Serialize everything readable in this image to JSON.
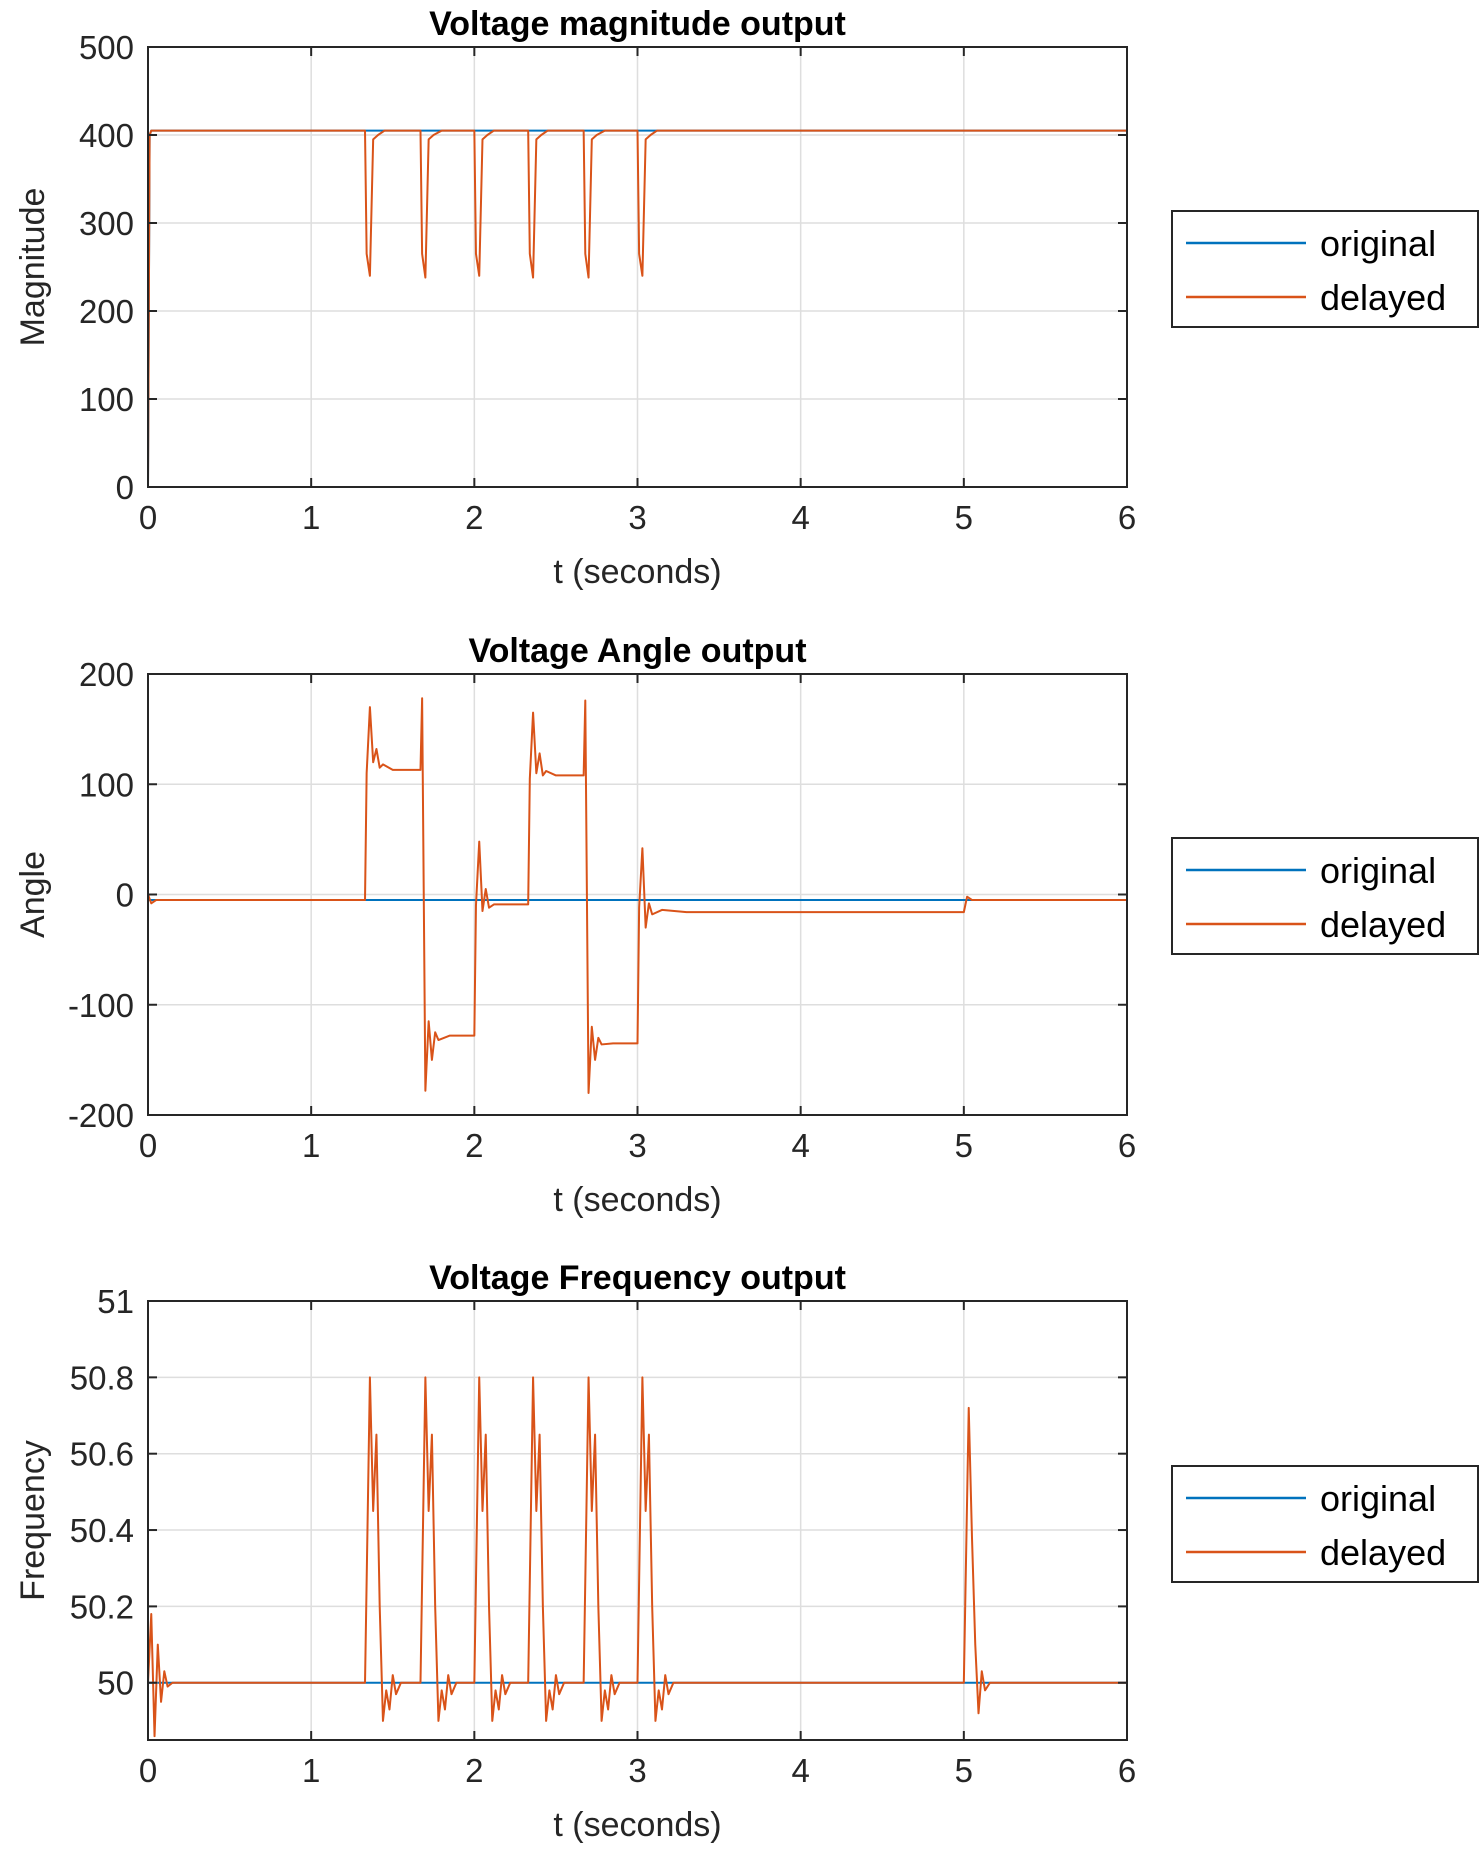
{
  "chart_data": [
    {
      "type": "line",
      "title": "Voltage magnitude output",
      "xlabel": "t (seconds)",
      "ylabel": "Magnitude",
      "xlim": [
        0,
        6
      ],
      "ylim": [
        0,
        500
      ],
      "xticks": [
        0,
        1,
        2,
        3,
        4,
        5,
        6
      ],
      "xtick_labels": [
        "0",
        "1",
        "2",
        "3",
        "4",
        "5",
        "6"
      ],
      "yticks": [
        0,
        100,
        200,
        300,
        400,
        500
      ],
      "ytick_labels": [
        "0",
        "100",
        "200",
        "300",
        "400",
        "500"
      ],
      "grid": true,
      "legend": {
        "position": "right",
        "entries": [
          "original",
          "delayed"
        ]
      },
      "series": [
        {
          "name": "original",
          "color": "#0072BD",
          "x": [
            0,
            0.01,
            0.02,
            6
          ],
          "y": [
            0,
            400,
            405,
            405
          ]
        },
        {
          "name": "delayed",
          "color": "#D95319",
          "x": [
            0,
            0.01,
            0.02,
            1.33,
            1.34,
            1.36,
            1.38,
            1.41,
            1.45,
            1.67,
            1.68,
            1.7,
            1.72,
            1.75,
            1.8,
            2.0,
            2.01,
            2.03,
            2.05,
            2.08,
            2.12,
            2.33,
            2.34,
            2.36,
            2.38,
            2.41,
            2.45,
            2.67,
            2.68,
            2.7,
            2.72,
            2.75,
            2.8,
            3.0,
            3.01,
            3.03,
            3.05,
            3.08,
            3.12,
            6
          ],
          "y": [
            0,
            400,
            405,
            405,
            265,
            240,
            395,
            400,
            405,
            405,
            265,
            238,
            395,
            400,
            405,
            405,
            265,
            240,
            395,
            400,
            405,
            405,
            265,
            238,
            395,
            400,
            405,
            405,
            265,
            238,
            395,
            400,
            405,
            405,
            265,
            240,
            395,
            400,
            405,
            405
          ]
        }
      ]
    },
    {
      "type": "line",
      "title": "Voltage Angle output",
      "xlabel": "t (seconds)",
      "ylabel": "Angle",
      "xlim": [
        0,
        6
      ],
      "ylim": [
        -200,
        200
      ],
      "xticks": [
        0,
        1,
        2,
        3,
        4,
        5,
        6
      ],
      "xtick_labels": [
        "0",
        "1",
        "2",
        "3",
        "4",
        "5",
        "6"
      ],
      "yticks": [
        -200,
        -100,
        0,
        100,
        200
      ],
      "ytick_labels": [
        "-200",
        "-100",
        "0",
        "100",
        "200"
      ],
      "grid": true,
      "legend": {
        "position": "right",
        "entries": [
          "original",
          "delayed"
        ]
      },
      "series": [
        {
          "name": "original",
          "color": "#0072BD",
          "x": [
            0,
            6
          ],
          "y": [
            -5,
            -5
          ]
        },
        {
          "name": "delayed",
          "color": "#D95319",
          "x": [
            0,
            0.02,
            0.05,
            1.33,
            1.34,
            1.36,
            1.38,
            1.4,
            1.42,
            1.44,
            1.5,
            1.67,
            1.68,
            1.7,
            1.72,
            1.74,
            1.76,
            1.78,
            1.85,
            2.0,
            2.01,
            2.03,
            2.05,
            2.07,
            2.09,
            2.12,
            2.33,
            2.34,
            2.36,
            2.38,
            2.4,
            2.42,
            2.44,
            2.5,
            2.67,
            2.68,
            2.7,
            2.72,
            2.74,
            2.76,
            2.78,
            2.85,
            3.0,
            3.01,
            3.03,
            3.05,
            3.07,
            3.09,
            3.15,
            3.3,
            5.0,
            5.02,
            5.05,
            5.1,
            6
          ],
          "y": [
            0,
            -8,
            -5,
            -5,
            110,
            170,
            120,
            132,
            115,
            118,
            113,
            113,
            178,
            -178,
            -115,
            -150,
            -125,
            -132,
            -128,
            -128,
            -10,
            48,
            -15,
            5,
            -12,
            -9,
            -9,
            105,
            165,
            110,
            128,
            108,
            112,
            108,
            108,
            176,
            -180,
            -120,
            -150,
            -130,
            -136,
            -135,
            -135,
            -12,
            42,
            -30,
            -8,
            -18,
            -14,
            -16,
            -16,
            -2,
            -5,
            -5,
            -5
          ]
        }
      ]
    },
    {
      "type": "line",
      "title": "Voltage Frequency output",
      "xlabel": "t (seconds)",
      "ylabel": "Frequency",
      "xlim": [
        0,
        6
      ],
      "ylim": [
        49.85,
        51
      ],
      "xticks": [
        0,
        1,
        2,
        3,
        4,
        5,
        6
      ],
      "xtick_labels": [
        "0",
        "1",
        "2",
        "3",
        "4",
        "5",
        "6"
      ],
      "yticks": [
        50,
        50.2,
        50.4,
        50.6,
        50.8,
        51
      ],
      "ytick_labels": [
        "50",
        "50.2",
        "50.4",
        "50.6",
        "50.8",
        "51"
      ],
      "grid": true,
      "legend": {
        "position": "right",
        "entries": [
          "original",
          "delayed"
        ]
      },
      "series": [
        {
          "name": "original",
          "color": "#0072BD",
          "x": [
            0,
            6
          ],
          "y": [
            50,
            50
          ]
        },
        {
          "name": "delayed",
          "color": "#D95319",
          "x": [
            0,
            0.02,
            0.04,
            0.06,
            0.08,
            0.1,
            0.12,
            0.15,
            1.33,
            1.36,
            1.38,
            1.4,
            1.42,
            1.44,
            1.46,
            1.48,
            1.5,
            1.52,
            1.55,
            1.6,
            1.67,
            1.7,
            1.72,
            1.74,
            1.76,
            1.78,
            1.8,
            1.82,
            1.84,
            1.86,
            1.89,
            1.94,
            2.0,
            2.03,
            2.05,
            2.07,
            2.09,
            2.11,
            2.13,
            2.15,
            2.17,
            2.19,
            2.22,
            2.27,
            2.33,
            2.36,
            2.38,
            2.4,
            2.42,
            2.44,
            2.46,
            2.48,
            2.5,
            2.52,
            2.55,
            2.6,
            2.67,
            2.7,
            2.72,
            2.74,
            2.76,
            2.78,
            2.8,
            2.82,
            2.84,
            2.86,
            2.89,
            2.94,
            3.0,
            3.03,
            3.05,
            3.07,
            3.09,
            3.11,
            3.13,
            3.15,
            3.17,
            3.19,
            3.22,
            3.3,
            5.0,
            5.03,
            5.05,
            5.07,
            5.09,
            5.11,
            5.13,
            5.16,
            5.25,
            6
          ],
          "y": [
            50,
            50.18,
            49.86,
            50.1,
            49.95,
            50.03,
            49.99,
            50,
            50,
            50.8,
            50.45,
            50.65,
            50.2,
            49.9,
            49.98,
            49.93,
            50.02,
            49.97,
            50.0,
            50,
            50,
            50.8,
            50.45,
            50.65,
            50.2,
            49.9,
            49.98,
            49.93,
            50.02,
            49.97,
            50.0,
            50,
            50,
            50.8,
            50.45,
            50.65,
            50.2,
            49.9,
            49.98,
            49.93,
            50.02,
            49.97,
            50.0,
            50,
            50,
            50.8,
            50.45,
            50.65,
            50.2,
            49.9,
            49.98,
            49.93,
            50.02,
            49.97,
            50.0,
            50,
            50,
            50.8,
            50.45,
            50.65,
            50.2,
            49.9,
            49.98,
            49.93,
            50.02,
            49.97,
            50.0,
            50,
            50,
            50.8,
            50.45,
            50.65,
            50.2,
            49.9,
            49.98,
            49.93,
            50.02,
            49.97,
            50.0,
            50,
            50,
            50.72,
            50.38,
            50.1,
            49.92,
            50.03,
            49.98,
            50.0,
            50,
            50
          ]
        }
      ]
    }
  ]
}
